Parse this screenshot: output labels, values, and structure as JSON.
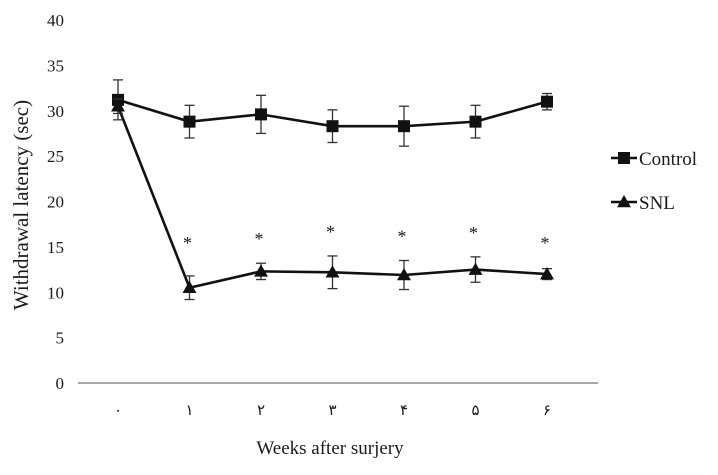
{
  "chart_data": {
    "type": "line",
    "title": "",
    "xlabel": "Weeks after surjery",
    "ylabel": "Withdrawal latency (sec)",
    "ylim": [
      0,
      40
    ],
    "yticks": [
      0,
      5,
      10,
      15,
      20,
      25,
      30,
      35,
      40
    ],
    "categories": [
      "۰",
      "۱",
      "۲",
      "۳",
      "۴",
      "۵",
      "۶"
    ],
    "series": [
      {
        "name": "Control",
        "marker": "square",
        "color": "#111111",
        "values": [
          31.2,
          28.8,
          29.6,
          28.3,
          28.3,
          28.8,
          31.0
        ],
        "errors": [
          2.2,
          1.8,
          2.1,
          1.8,
          2.2,
          1.8,
          0.9
        ]
      },
      {
        "name": "SNL",
        "marker": "triangle",
        "color": "#111111",
        "values": [
          30.5,
          10.5,
          12.3,
          12.2,
          11.9,
          12.5,
          12.0
        ],
        "errors": [
          0.8,
          1.3,
          0.9,
          1.8,
          1.6,
          1.4,
          0.6
        ]
      }
    ],
    "annotations": [
      "*",
      "*",
      "*",
      "*",
      "*",
      "*"
    ],
    "annotation_indices": [
      1,
      2,
      3,
      4,
      5,
      6
    ],
    "legend_position": "right",
    "grid": false
  }
}
